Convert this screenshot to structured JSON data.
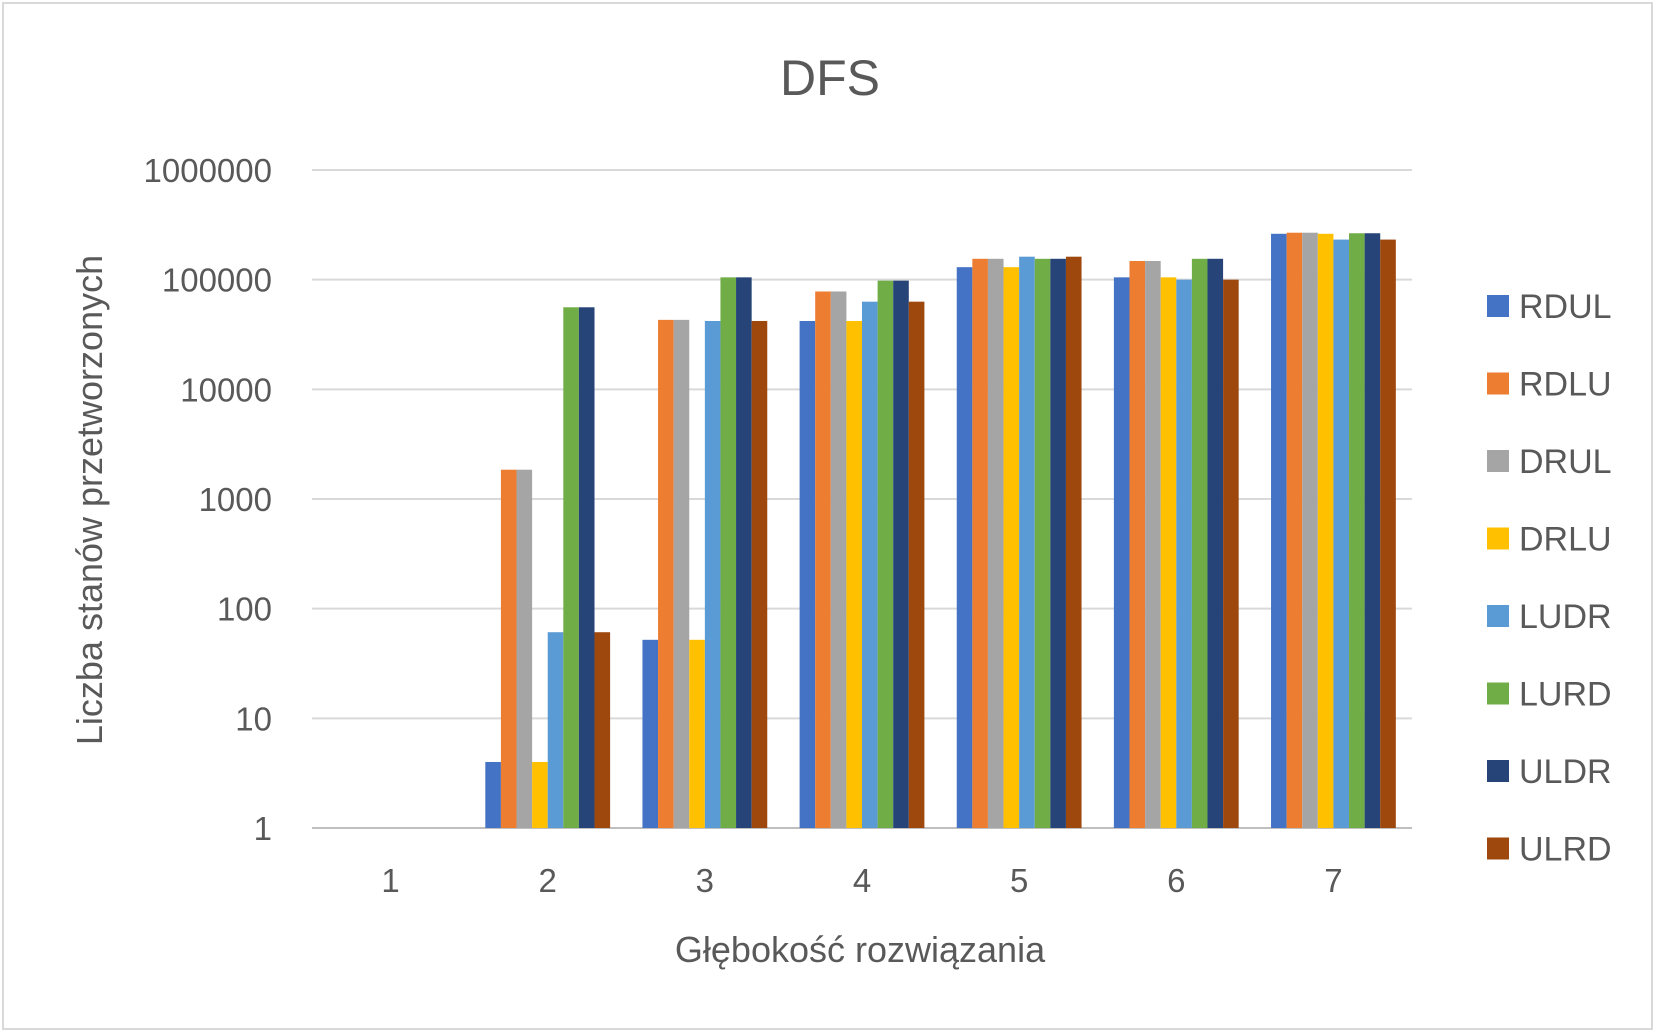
{
  "chart_data": {
    "type": "bar",
    "title": "DFS",
    "xlabel": "Głębokość rozwiązania",
    "ylabel": "Liczba stanów przetworzonych",
    "yscale": "log",
    "ylim": [
      1,
      1000000
    ],
    "yticks": [
      "1",
      "10",
      "100",
      "1000",
      "10000",
      "100000",
      "1000000"
    ],
    "grid": true,
    "legend_position": "right",
    "categories": [
      "1",
      "2",
      "3",
      "4",
      "5",
      "6",
      "7"
    ],
    "series": [
      {
        "name": "RDUL",
        "color": "#4472C4",
        "values": [
          1,
          4,
          52,
          42000,
          130000,
          105000,
          262000
        ]
      },
      {
        "name": "RDLU",
        "color": "#ED7D31",
        "values": [
          1,
          1850,
          43000,
          78000,
          155000,
          148000,
          268000
        ]
      },
      {
        "name": "DRUL",
        "color": "#A5A5A5",
        "values": [
          1,
          1850,
          43000,
          78000,
          155000,
          148000,
          268000
        ]
      },
      {
        "name": "DRLU",
        "color": "#FFC000",
        "values": [
          1,
          4,
          52,
          42000,
          130000,
          105000,
          262000
        ]
      },
      {
        "name": "LUDR",
        "color": "#5B9BD5",
        "values": [
          1,
          61,
          42000,
          63000,
          162000,
          100000,
          232000
        ]
      },
      {
        "name": "LURD",
        "color": "#70AD47",
        "values": [
          1,
          56000,
          105000,
          98000,
          155000,
          155000,
          265000
        ]
      },
      {
        "name": "ULDR",
        "color": "#264478",
        "values": [
          1,
          56000,
          105000,
          98000,
          155000,
          155000,
          265000
        ]
      },
      {
        "name": "ULRD",
        "color": "#9E480E",
        "values": [
          1,
          61,
          42000,
          63000,
          162000,
          100000,
          232000
        ]
      }
    ]
  }
}
